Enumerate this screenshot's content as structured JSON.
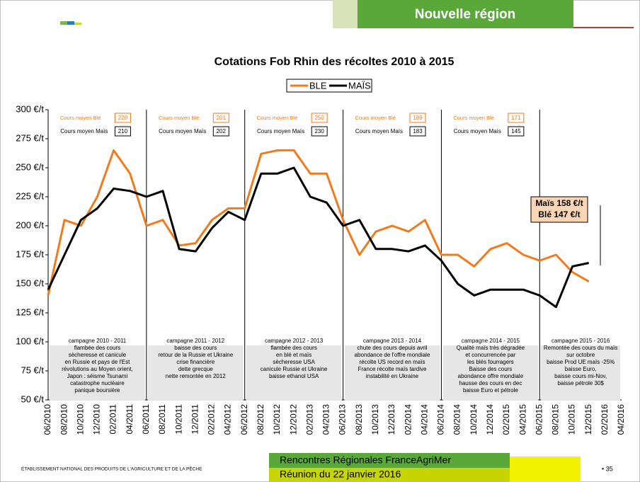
{
  "header": {
    "region": "Nouvelle région"
  },
  "chart_data": {
    "type": "line",
    "title": "Cotations Fob Rhin des récoltes 2010 à 2015",
    "categories": [
      "06/2010",
      "08/2010",
      "10/2010",
      "12/2010",
      "02/2011",
      "04/2011",
      "06/2011",
      "08/2011",
      "10/2011",
      "12/2011",
      "02/2012",
      "04/2012",
      "06/2012",
      "08/2012",
      "10/2012",
      "12/2012",
      "02/2013",
      "04/2013",
      "06/2013",
      "08/2013",
      "10/2013",
      "12/2013",
      "02/2014",
      "04/2014",
      "06/2014",
      "08/2014",
      "10/2014",
      "12/2014",
      "02/2015",
      "04/2015",
      "06/2015",
      "08/2015",
      "10/2015",
      "12/2015",
      "02/2016",
      "04/2016"
    ],
    "series": [
      {
        "name": "BLE",
        "color": "#f07b1e",
        "values": [
          140,
          205,
          200,
          225,
          265,
          245,
          200,
          205,
          183,
          185,
          205,
          215,
          215,
          262,
          265,
          265,
          245,
          245,
          205,
          175,
          195,
          200,
          195,
          205,
          175,
          175,
          165,
          180,
          185,
          175,
          170,
          175,
          160,
          152,
          null,
          null
        ]
      },
      {
        "name": "MAÏS",
        "color": "#000000",
        "values": [
          145,
          175,
          205,
          215,
          232,
          230,
          225,
          230,
          180,
          178,
          198,
          212,
          205,
          245,
          245,
          250,
          225,
          220,
          200,
          205,
          180,
          180,
          178,
          183,
          170,
          150,
          140,
          145,
          145,
          145,
          140,
          130,
          165,
          168,
          null,
          null
        ]
      }
    ],
    "ylim": [
      50,
      300
    ],
    "yticks": [
      {
        "value": 50,
        "label": "50 €/t"
      },
      {
        "value": 75,
        "label": "75 €/t"
      },
      {
        "value": 100,
        "label": "100 €/t"
      },
      {
        "value": 125,
        "label": "125 €/t"
      },
      {
        "value": 150,
        "label": "150 €/t"
      },
      {
        "value": 175,
        "label": "175 €/t"
      },
      {
        "value": 200,
        "label": "200 €/t"
      },
      {
        "value": 225,
        "label": "225 €/t"
      },
      {
        "value": 250,
        "label": "250 €/t"
      },
      {
        "value": 275,
        "label": "275 €/t"
      },
      {
        "value": 300,
        "label": "300 €/t"
      }
    ],
    "legend": "top",
    "averages_labels": {
      "ble": "Cours moyen Blé",
      "mais": "Cours moyen Maïs"
    },
    "averages": [
      {
        "ble": 220,
        "mais": 210
      },
      {
        "ble": 201,
        "mais": 202
      },
      {
        "ble": 250,
        "mais": 230
      },
      {
        "ble": 189,
        "mais": 183
      },
      {
        "ble": 171,
        "mais": 145
      }
    ],
    "campaigns": [
      {
        "title": "campagne 2010 - 2011",
        "lines": [
          "flambée des cours",
          "sècheresse et canicule",
          "en Russie et pays de l'Est",
          "révolutions au Moyen orient,",
          "Japon : séisme Tsunami",
          "catastrophe nucléaire",
          "panique boursière"
        ]
      },
      {
        "title": "campagne 2011 - 2012",
        "lines": [
          "baisse des cours",
          "retour de la Russie et Ukraine",
          "crise financière",
          "dette grecque",
          "nette remontée en 2012"
        ]
      },
      {
        "title": "campagne 2012 - 2013",
        "lines": [
          "flambée des cours",
          "en blé et maïs",
          "sècheresse USA",
          "canicule Russie et Ukraine",
          "baisse ethanol USA"
        ]
      },
      {
        "title": "campagne 2013 - 2014",
        "lines": [
          "chute des cours depuis avril",
          "abondance de l'offre mondiale",
          "récolte US record en maïs",
          "France récolte maïs tardive",
          "instabilité en Ukraine"
        ]
      },
      {
        "title": "campagne 2014 - 2015",
        "lines": [
          "Qualité maïs très dégradée",
          "et concurrencée par",
          "les blés fourragers",
          "Baisse  des cours",
          "abondance offre mondiale",
          "hausse des cours en dec",
          "baisse Euro et pétrole"
        ]
      },
      {
        "title": "campagne 2015 - 2016",
        "lines": [
          "Remontée des cours du maïs",
          "sur octobre",
          "baisse Prod UE maïs -25%",
          "baisse Euro,",
          "baisse cours mi-Nov,",
          "baisse pétrole 30$"
        ]
      }
    ],
    "annotation": [
      "Maïs 158 €/t",
      "Blé 147 €/t"
    ]
  },
  "footer": {
    "institution": "ÉTABLISSEMENT NATIONAL DES PRODUITS DE L'AGRICULTURE ET DE LA PÊCHE",
    "event": "Rencontres Régionales FranceAgriMer",
    "date": "Réunion du 22 janvier 2016",
    "page": "• 35"
  }
}
